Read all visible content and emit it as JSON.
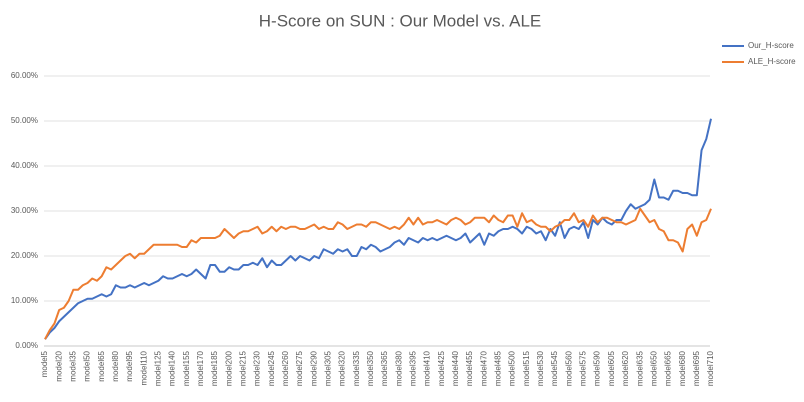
{
  "chart_data": {
    "type": "line",
    "title": "H-Score on SUN : Our Model vs. ALE",
    "categories": [
      "model5",
      null,
      null,
      "model20",
      null,
      null,
      "model35",
      null,
      null,
      "model50",
      null,
      null,
      "model65",
      null,
      null,
      "model80",
      null,
      null,
      "model95",
      null,
      null,
      "model110",
      null,
      null,
      "model125",
      null,
      null,
      "model140",
      null,
      null,
      "model155",
      null,
      null,
      "model170",
      null,
      null,
      "model185",
      null,
      null,
      "model200",
      null,
      null,
      "model215",
      null,
      null,
      "model230",
      null,
      null,
      "model245",
      null,
      null,
      "model260",
      null,
      null,
      "model275",
      null,
      null,
      "model290",
      null,
      null,
      "model305",
      null,
      null,
      "model320",
      null,
      null,
      "model335",
      null,
      null,
      "model350",
      null,
      null,
      "model365",
      null,
      null,
      "model380",
      null,
      null,
      "model395",
      null,
      null,
      "model410",
      null,
      null,
      "model425",
      null,
      null,
      "model440",
      null,
      null,
      "model455",
      null,
      null,
      "model470",
      null,
      null,
      "model485",
      null,
      null,
      "model500",
      null,
      null,
      "model515",
      null,
      null,
      "model530",
      null,
      null,
      "model545",
      null,
      null,
      "model560",
      null,
      null,
      "model575",
      null,
      null,
      "model590",
      null,
      null,
      "model605",
      null,
      null,
      "model620",
      null,
      null,
      "model635",
      null,
      null,
      "model650",
      null,
      null,
      "model665",
      null,
      null,
      "model680",
      null,
      null,
      "model695",
      null,
      null,
      "model710"
    ],
    "series": [
      {
        "name": "Our_H-score",
        "color": "#4472c4",
        "values": [
          1.5,
          3,
          4,
          5.5,
          6.5,
          7.5,
          8.5,
          9.5,
          10,
          10.5,
          10.5,
          11,
          11.5,
          11,
          11.5,
          13.5,
          13,
          13,
          13.5,
          13,
          13.5,
          14,
          13.5,
          14,
          14.5,
          15.5,
          15,
          15,
          15.5,
          16,
          15.5,
          16,
          17,
          16,
          15,
          18,
          18,
          16.5,
          16.5,
          17.5,
          17,
          17,
          18,
          18,
          18.5,
          18,
          19.5,
          17.5,
          19,
          18,
          18,
          19,
          20,
          19,
          20,
          19.5,
          19,
          20,
          19.5,
          21.5,
          21,
          20.5,
          21.5,
          21,
          21.5,
          20,
          20,
          22,
          21.5,
          22.5,
          22,
          21,
          21.5,
          22,
          23,
          23.5,
          22.5,
          24,
          23.5,
          23,
          24,
          23.5,
          24,
          23.5,
          24,
          24.5,
          24,
          23.5,
          24,
          25,
          23,
          24,
          25,
          22.5,
          25,
          24.5,
          25.5,
          26,
          26,
          26.5,
          26,
          25,
          26.5,
          26,
          25,
          25.5,
          23.5,
          26,
          24.5,
          27.5,
          24,
          26,
          26.5,
          26,
          27.5,
          24,
          28,
          27,
          28.5,
          27.5,
          27,
          28,
          28,
          30,
          31.5,
          30.5,
          31,
          31.5,
          32.5,
          37,
          33,
          33,
          32.5,
          34.5,
          34.5,
          34,
          34,
          33.5,
          33.5,
          43.5,
          46,
          50.5
        ]
      },
      {
        "name": "ALE_H-score",
        "color": "#ed7d31",
        "values": [
          1.5,
          3.5,
          5,
          8,
          8.5,
          10,
          12.5,
          12.5,
          13.5,
          14,
          15,
          14.5,
          15.5,
          17.5,
          17,
          18,
          19,
          20,
          20.5,
          19.5,
          20.5,
          20.5,
          21.5,
          22.5,
          22.5,
          22.5,
          22.5,
          22.5,
          22.5,
          22,
          22,
          23.5,
          23,
          24,
          24,
          24,
          24,
          24.5,
          26,
          25,
          24,
          25,
          25.5,
          25.5,
          26,
          26.5,
          25,
          25.5,
          26.5,
          25.5,
          26.5,
          26,
          26.5,
          26.5,
          26,
          26,
          26.5,
          27,
          26,
          26.5,
          26,
          26,
          27.5,
          27,
          26,
          26.5,
          27,
          27,
          26.5,
          27.5,
          27.5,
          27,
          26.5,
          26,
          26.5,
          26,
          27,
          28.5,
          27,
          28.5,
          27,
          27.5,
          27.5,
          28,
          27.5,
          27,
          28,
          28.5,
          28,
          27,
          27.5,
          28.5,
          28.5,
          28.5,
          27.5,
          29,
          28,
          27.5,
          29,
          29,
          26.5,
          29.5,
          27.5,
          28,
          27,
          26.5,
          26.5,
          25.5,
          26.5,
          27,
          28,
          28,
          29.5,
          27.5,
          28,
          26.5,
          29,
          27.5,
          28.5,
          28.5,
          28,
          27.5,
          27.5,
          27,
          27.5,
          28,
          30.5,
          29,
          27.5,
          28,
          26,
          25.5,
          23.5,
          23.5,
          23,
          21,
          26,
          27,
          24.5,
          27.5,
          28,
          30.5
        ]
      }
    ],
    "ylim": [
      0,
      60
    ],
    "yticks": [
      {
        "value": 0,
        "label": "0.00%"
      },
      {
        "value": 10,
        "label": "10.00%"
      },
      {
        "value": 20,
        "label": "20.00%"
      },
      {
        "value": 30,
        "label": "30.00%"
      },
      {
        "value": 40,
        "label": "40.00%"
      },
      {
        "value": 50,
        "label": "50.00%"
      },
      {
        "value": 60,
        "label": "60.00%"
      }
    ],
    "grid": true,
    "legend": "right"
  }
}
